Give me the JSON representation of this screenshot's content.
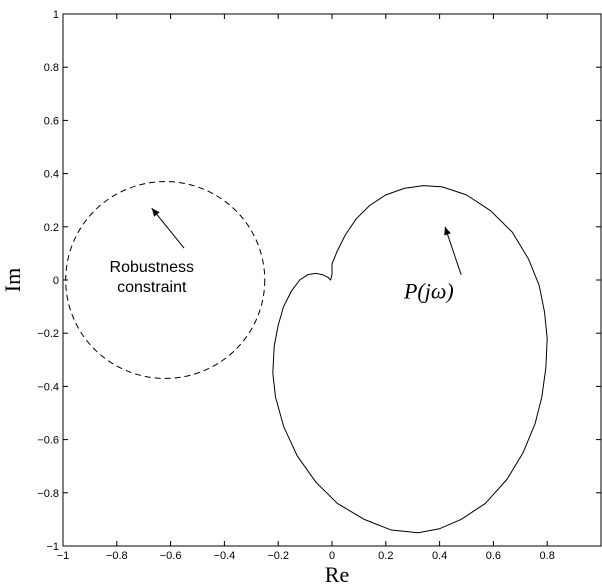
{
  "chart_data": {
    "type": "line",
    "title": "",
    "xlabel": "Re",
    "ylabel": "Im",
    "xlim": [
      -1,
      1
    ],
    "ylim": [
      -1,
      1
    ],
    "xticks": [
      -1,
      -0.8,
      -0.6,
      -0.4,
      -0.2,
      0,
      0.2,
      0.4,
      0.6,
      0.8
    ],
    "xtick_labels": [
      "−1",
      "−0.8",
      "−0.6",
      "−0.4",
      "−0.2",
      "0",
      "0.2",
      "0.4",
      "0.6",
      "0.8"
    ],
    "yticks": [
      1,
      0.8,
      0.6,
      0.4,
      0.2,
      0,
      -0.2,
      -0.4,
      -0.6,
      -0.8,
      -1
    ],
    "ytick_labels": [
      "1",
      "0.8",
      "0.6",
      "0.4",
      "0.2",
      "0",
      "−0.2",
      "−0.4",
      "−0.6",
      "−0.8",
      "−1"
    ],
    "grid": false,
    "series": [
      {
        "style": "dashed",
        "shape": "circle",
        "center": [
          -0.62,
          0
        ],
        "radius": 0.37
      },
      {
        "name": "P(jω)",
        "style": "solid",
        "points": [
          [
            0.0,
            0.02
          ],
          [
            0.0,
            0.06
          ],
          [
            0.02,
            0.11
          ],
          [
            0.05,
            0.17
          ],
          [
            0.09,
            0.23
          ],
          [
            0.14,
            0.28
          ],
          [
            0.2,
            0.32
          ],
          [
            0.27,
            0.345
          ],
          [
            0.34,
            0.355
          ],
          [
            0.41,
            0.35
          ],
          [
            0.5,
            0.32
          ],
          [
            0.59,
            0.26
          ],
          [
            0.67,
            0.18
          ],
          [
            0.73,
            0.08
          ],
          [
            0.77,
            -0.02
          ],
          [
            0.79,
            -0.12
          ],
          [
            0.8,
            -0.22
          ],
          [
            0.795,
            -0.33
          ],
          [
            0.78,
            -0.44
          ],
          [
            0.755,
            -0.54
          ],
          [
            0.71,
            -0.65
          ],
          [
            0.65,
            -0.75
          ],
          [
            0.57,
            -0.84
          ],
          [
            0.48,
            -0.9
          ],
          [
            0.4,
            -0.935
          ],
          [
            0.32,
            -0.95
          ],
          [
            0.22,
            -0.94
          ],
          [
            0.12,
            -0.9
          ],
          [
            0.02,
            -0.84
          ],
          [
            -0.06,
            -0.76
          ],
          [
            -0.13,
            -0.66
          ],
          [
            -0.18,
            -0.55
          ],
          [
            -0.21,
            -0.44
          ],
          [
            -0.22,
            -0.35
          ],
          [
            -0.215,
            -0.25
          ],
          [
            -0.2,
            -0.17
          ],
          [
            -0.18,
            -0.1
          ],
          [
            -0.15,
            -0.04
          ],
          [
            -0.12,
            0.0
          ],
          [
            -0.09,
            0.02
          ],
          [
            -0.06,
            0.025
          ],
          [
            -0.035,
            0.02
          ],
          [
            -0.015,
            0.01
          ],
          [
            -0.005,
            0.0
          ],
          [
            0.0,
            0.02
          ]
        ]
      }
    ],
    "annotations": [
      {
        "text_lines": [
          "Robustness",
          "constraint"
        ],
        "text_at": [
          -0.67,
          0.03
        ],
        "arrow_from": [
          -0.55,
          0.12
        ],
        "arrow_to": [
          -0.67,
          0.27
        ]
      },
      {
        "text": "P(jω)",
        "text_at": [
          0.36,
          -0.07
        ],
        "arrow_from": [
          0.48,
          0.02
        ],
        "arrow_to": [
          0.42,
          0.2
        ]
      }
    ]
  }
}
